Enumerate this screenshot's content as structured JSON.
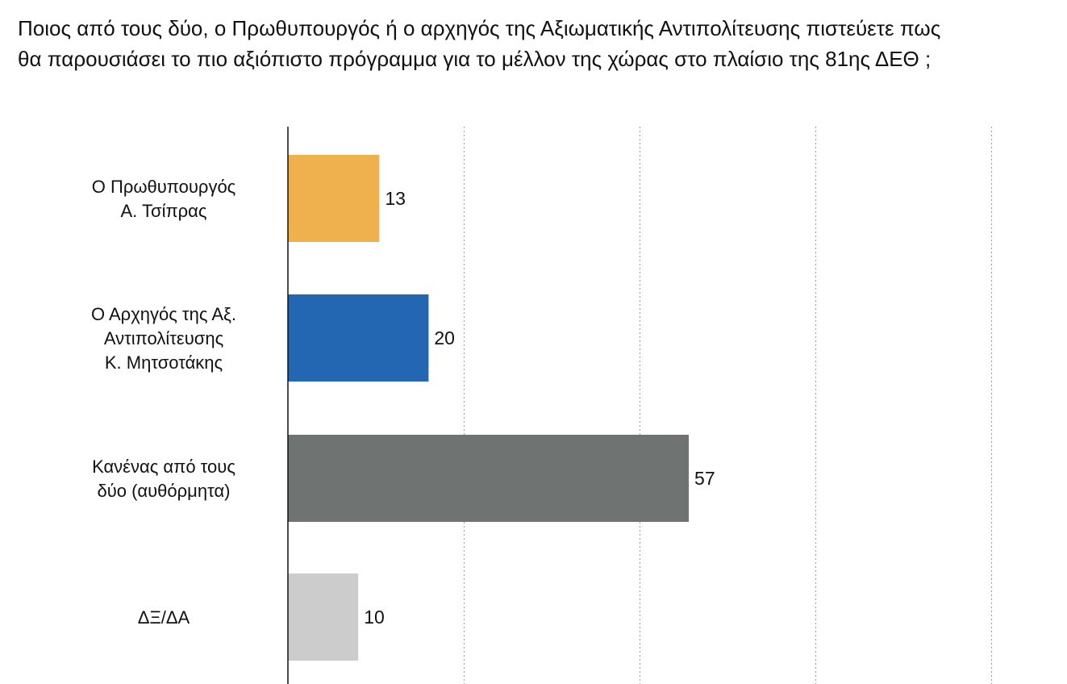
{
  "chart_data": {
    "type": "bar",
    "orientation": "horizontal",
    "title_lines": [
      "Ποιος από τους δύο, ο Πρωθυπουργός ή ο αρχηγός της Αξιωματικής Αντιπολίτευσης πιστεύετε πως",
      "θα παρουσιάσει το πιο αξιόπιστο πρόγραμμα για το μέλλον της χώρας στο πλαίσιο της 81ης ΔΕΘ ;"
    ],
    "categories": [
      {
        "lines": [
          "Ο Πρωθυπουργός",
          "Α. Τσίπρας"
        ]
      },
      {
        "lines": [
          "Ο Αρχηγός της Αξ.",
          "Αντιπολίτευσης",
          "Κ. Μητσοτάκης"
        ]
      },
      {
        "lines": [
          "Κανένας από τους",
          "δύο (αυθόρμητα)"
        ]
      },
      {
        "lines": [
          "ΔΞ/ΔΑ"
        ]
      }
    ],
    "values": [
      13,
      20,
      57,
      10
    ],
    "colors": [
      "#efb14d",
      "#2367b2",
      "#6f7472",
      "#cccccc"
    ],
    "xlim": [
      0,
      100
    ],
    "gridlines_at": [
      25,
      50,
      75,
      100
    ],
    "grid": "vertical-dotted",
    "legend": "none"
  }
}
